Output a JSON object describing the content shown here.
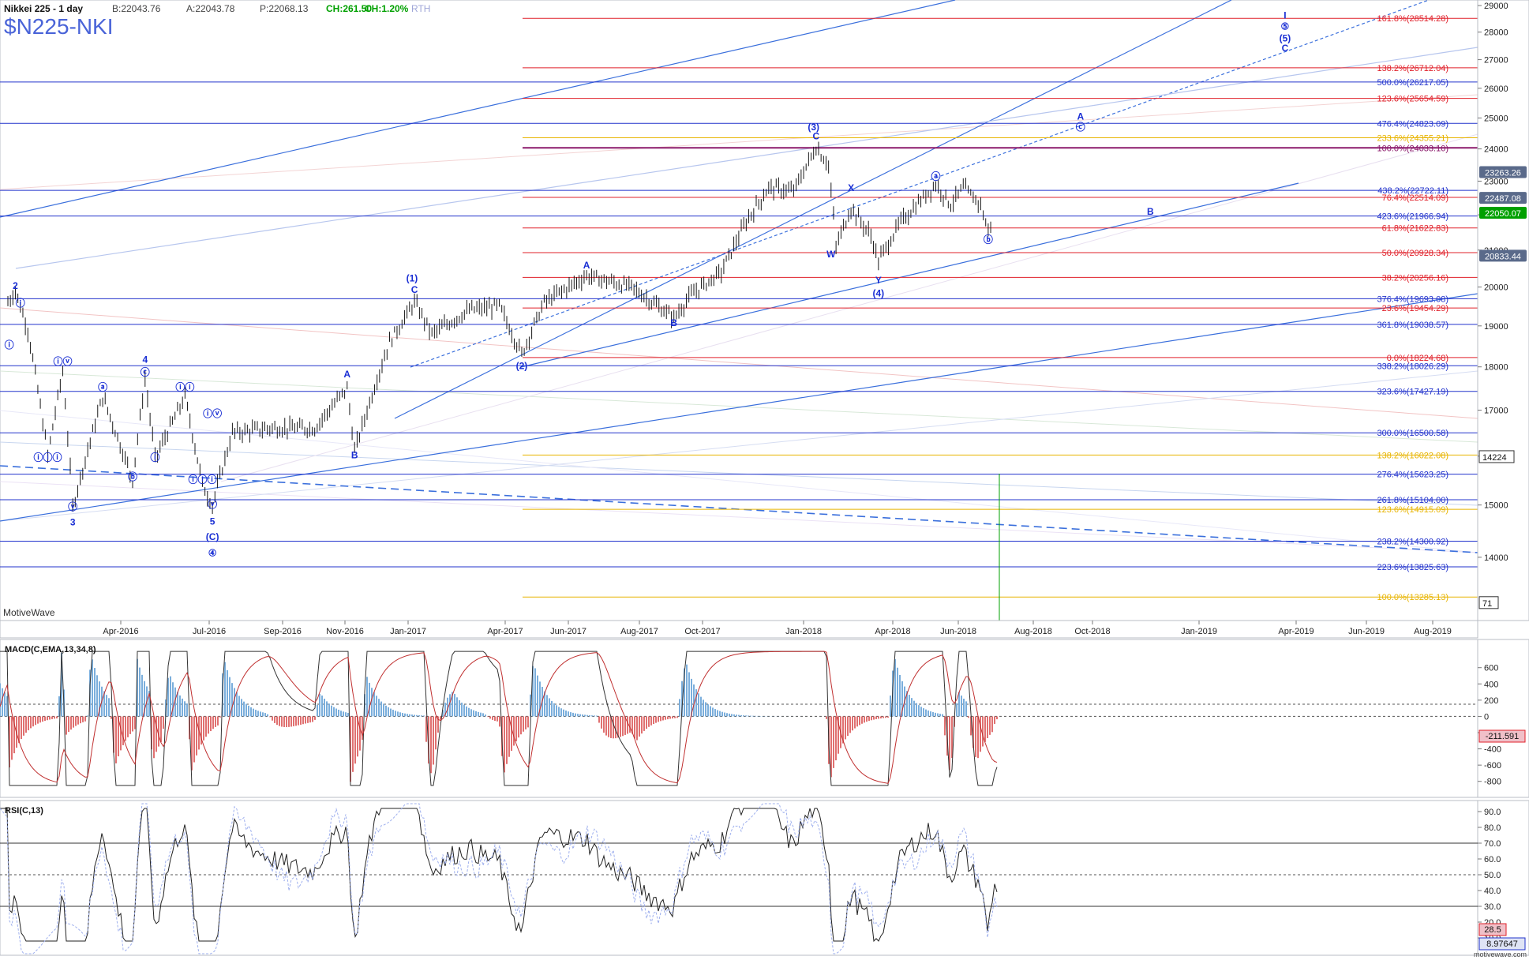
{
  "header": {
    "symbol_title": "Nikkei 225 - 1 day",
    "bid": "B:22043.76",
    "ask": "A:22043.78",
    "last": "P:22068.13",
    "change": "CH:261.50",
    "change_pct": "CH:1.20%",
    "session": "RTH",
    "ticker": "$N225-NKI",
    "watermark": "MotiveWave",
    "footer_brand": "motivewave.com"
  },
  "colors": {
    "fib_red": "#e0202a",
    "fib_blue": "#2233cc",
    "fib_gold": "#e8b400",
    "fib_purple": "#8b1a6b",
    "channel": "#3a6fdc",
    "wave_label": "#1a2fd4",
    "price_up": "#00a000"
  },
  "chart_data": [
    {
      "type": "line",
      "name": "price",
      "ylim": [
        13000,
        29000
      ],
      "x_ticks": [
        "Apr-2016",
        "Jul-2016",
        "Sep-2016",
        "Nov-2016",
        "Jan-2017",
        "Apr-2017",
        "Jun-2017",
        "Aug-2017",
        "Oct-2017",
        "Jan-2018",
        "Apr-2018",
        "Jun-2018",
        "Aug-2018",
        "Oct-2018",
        "Jan-2019",
        "Apr-2019",
        "Jun-2019",
        "Aug-2019"
      ],
      "y_ticks": [
        14000,
        15000,
        16000,
        17000,
        18000,
        19000,
        20000,
        21000,
        22000,
        23000,
        24000,
        25000,
        26000,
        27000,
        28000,
        29000
      ],
      "price_labels": [
        {
          "text": "23263.26",
          "y": 23263,
          "color": "#5a6a8a"
        },
        {
          "text": "22487.08",
          "y": 22487,
          "color": "#5a6a8a"
        },
        {
          "text": "22050.07",
          "y": 22050,
          "color": "#00a000"
        },
        {
          "text": "20833.44",
          "y": 20833,
          "color": "#5a6a8a"
        }
      ],
      "fib_levels": [
        {
          "label": "161.8%(28514.28)",
          "y": 28514,
          "color": "#e0202a"
        },
        {
          "label": "138.2%(26712.04)",
          "y": 26712,
          "color": "#e0202a"
        },
        {
          "label": "500.0%(26217.05)",
          "y": 26217,
          "color": "#2233cc"
        },
        {
          "label": "123.6%(25654.59)",
          "y": 25654,
          "color": "#e0202a"
        },
        {
          "label": "476.4%(24823.09)",
          "y": 24823,
          "color": "#2233cc"
        },
        {
          "label": "233.6%(24355.21)",
          "y": 24355,
          "color": "#e8b400"
        },
        {
          "label": "100.0%(24033.10)",
          "y": 24033,
          "color": "#8b1a6b"
        },
        {
          "label": "438.2%(22722.11)",
          "y": 22722,
          "color": "#2233cc"
        },
        {
          "label": "76.4%(22514.09)",
          "y": 22514,
          "color": "#e0202a"
        },
        {
          "label": "423.6%(21966.94)",
          "y": 21966,
          "color": "#2233cc"
        },
        {
          "label": "61.8%(21622.83)",
          "y": 21622,
          "color": "#e0202a"
        },
        {
          "label": "50.0%(20928.34)",
          "y": 20928,
          "color": "#e0202a"
        },
        {
          "label": "38.2%(20256.16)",
          "y": 20256,
          "color": "#e0202a"
        },
        {
          "label": "376.4%(19693.08)",
          "y": 19693,
          "color": "#2233cc"
        },
        {
          "label": "23.6%(19454.29)",
          "y": 19454,
          "color": "#e0202a"
        },
        {
          "label": "361.8%(19038.57)",
          "y": 19038,
          "color": "#2233cc"
        },
        {
          "label": "0.0%(18224.68)",
          "y": 18224,
          "color": "#e0202a"
        },
        {
          "label": "338.2%(18026.29)",
          "y": 18026,
          "color": "#2233cc"
        },
        {
          "label": "323.6%(17427.19)",
          "y": 17427,
          "color": "#2233cc"
        },
        {
          "label": "300.0%(16500.58)",
          "y": 16500,
          "color": "#2233cc"
        },
        {
          "label": "138.2%(16022.08)",
          "y": 16022,
          "color": "#e8b400"
        },
        {
          "label": "276.4%(15623.25)",
          "y": 15623,
          "color": "#2233cc"
        },
        {
          "label": "261.8%(15104.00)",
          "y": 15104,
          "color": "#2233cc"
        },
        {
          "label": "123.6%(14915.09)",
          "y": 14915,
          "color": "#e8b400"
        },
        {
          "label": "238.2%(14300.92)",
          "y": 14300,
          "color": "#2233cc"
        },
        {
          "label": "223.6%(13825.63)",
          "y": 13825,
          "color": "#2233cc"
        },
        {
          "label": "100.0%(13285.13)",
          "y": 13285,
          "color": "#e8b400"
        }
      ],
      "wave_labels": [
        {
          "text": "2",
          "m": 0.3,
          "y": 19950
        },
        {
          "text": "ⓘ",
          "m": 0.5,
          "y": 19500
        },
        {
          "text": "ⓘ",
          "m": 0.05,
          "y": 18450
        },
        {
          "text": "ⓘⓘⓘ",
          "m": 1.6,
          "y": 15900
        },
        {
          "text": "ⓘⓥ",
          "m": 2.2,
          "y": 18050
        },
        {
          "text": "ⓥ",
          "m": 2.6,
          "y": 14900
        },
        {
          "text": "3",
          "m": 2.6,
          "y": 14600
        },
        {
          "text": "ⓐ",
          "m": 3.8,
          "y": 17450
        },
        {
          "text": "ⓑ",
          "m": 5.0,
          "y": 15500
        },
        {
          "text": "4",
          "m": 5.5,
          "y": 18100
        },
        {
          "text": "ⓒ",
          "m": 5.5,
          "y": 17800
        },
        {
          "text": "ⓘ",
          "m": 5.9,
          "y": 15900
        },
        {
          "text": "ⓘⓘ",
          "m": 7.1,
          "y": 17450
        },
        {
          "text": "ⓘⓥ",
          "m": 8.2,
          "y": 16850
        },
        {
          "text": "ⓘⓘⓘ",
          "m": 7.8,
          "y": 15450
        },
        {
          "text": "ⓥ",
          "m": 8.2,
          "y": 14950
        },
        {
          "text": "5",
          "m": 8.2,
          "y": 14620
        },
        {
          "text": "(C)",
          "m": 8.2,
          "y": 14320
        },
        {
          "text": "④",
          "m": 8.2,
          "y": 14020
        },
        {
          "text": "A",
          "m": 13.6,
          "y": 17750
        },
        {
          "text": "B",
          "m": 13.9,
          "y": 15950
        },
        {
          "text": "(1)",
          "m": 16.2,
          "y": 20150
        },
        {
          "text": "C",
          "m": 16.3,
          "y": 19850
        },
        {
          "text": "(2)",
          "m": 20.6,
          "y": 17950
        },
        {
          "text": "A",
          "m": 23.2,
          "y": 20500
        },
        {
          "text": "B",
          "m": 26.7,
          "y": 19000
        },
        {
          "text": "(3)",
          "m": 32.3,
          "y": 24600
        },
        {
          "text": "C",
          "m": 32.4,
          "y": 24300
        },
        {
          "text": "X",
          "m": 33.8,
          "y": 22700
        },
        {
          "text": "W",
          "m": 33.0,
          "y": 20800
        },
        {
          "text": "ⓐ",
          "m": 37.2,
          "y": 23050
        },
        {
          "text": "Y",
          "m": 34.9,
          "y": 20100
        },
        {
          "text": "(4)",
          "m": 34.9,
          "y": 19750
        },
        {
          "text": "ⓑ",
          "m": 39.3,
          "y": 21200
        },
        {
          "text": "B",
          "m": 45.8,
          "y": 22000
        },
        {
          "text": "A",
          "m": 43.0,
          "y": 24950
        },
        {
          "text": "ⓒ",
          "m": 43.0,
          "y": 24600
        },
        {
          "text": "I",
          "m": 51.2,
          "y": 28500
        },
        {
          "text": "⑤",
          "m": 51.2,
          "y": 28100
        },
        {
          "text": "(5)",
          "m": 51.2,
          "y": 27650
        },
        {
          "text": "C",
          "m": 51.2,
          "y": 27300
        }
      ]
    },
    {
      "type": "line",
      "name": "MACD(C,EMA,13,34,8)",
      "ylim": [
        -900,
        850
      ],
      "y_ticks": [
        600,
        400,
        200,
        0,
        -200,
        -400,
        -600,
        -800
      ],
      "current_value": "-211.591"
    },
    {
      "type": "line",
      "name": "RSI(C,13)",
      "ylim": [
        0,
        95
      ],
      "y_ticks": [
        90.0,
        80.0,
        70.0,
        60.0,
        50.0,
        40.0,
        30.0,
        20.0,
        10.0
      ],
      "current_value": "28.5",
      "second_value": "8.97647"
    }
  ],
  "side_values": {
    "right_markers": [
      "14224",
      "71"
    ]
  }
}
